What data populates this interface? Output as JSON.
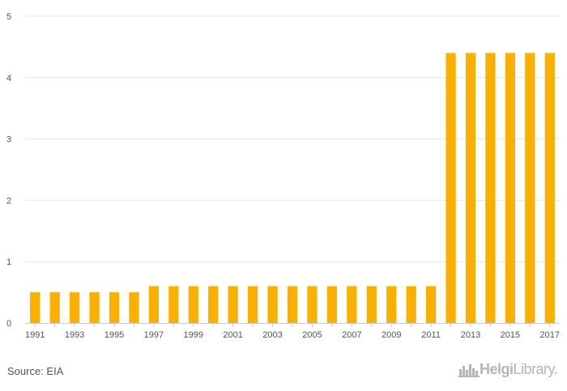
{
  "chart_data": {
    "type": "bar",
    "categories": [
      "1991",
      "1992",
      "1993",
      "1994",
      "1995",
      "1996",
      "1997",
      "1998",
      "1999",
      "2000",
      "2001",
      "2002",
      "2003",
      "2004",
      "2005",
      "2006",
      "2007",
      "2008",
      "2009",
      "2010",
      "2011",
      "2012",
      "2013",
      "2014",
      "2015",
      "2016",
      "2017"
    ],
    "tick_labels_x": [
      "1991",
      "1993",
      "1995",
      "1997",
      "1999",
      "2001",
      "2003",
      "2005",
      "2007",
      "2009",
      "2011",
      "2013",
      "2015",
      "2017"
    ],
    "series": [
      {
        "values": [
          0.5,
          0.5,
          0.5,
          0.5,
          0.5,
          0.5,
          0.6,
          0.6,
          0.6,
          0.6,
          0.6,
          0.6,
          0.6,
          0.6,
          0.6,
          0.6,
          0.6,
          0.6,
          0.6,
          0.6,
          0.6,
          4.4,
          4.4,
          4.4,
          4.4,
          4.4,
          4.4
        ]
      }
    ],
    "ylim": [
      0,
      5
    ],
    "yticks": [
      0,
      1,
      2,
      3,
      4,
      5
    ],
    "grid": true,
    "bar_color": "#f9b000",
    "title": "",
    "xlabel": "",
    "ylabel": ""
  },
  "footer": {
    "source": "Source: EIA",
    "logo_brand": "Helgi",
    "logo_suffix": "Library."
  },
  "colors": {
    "grid": "#e6e6e6",
    "axis": "#cccccc",
    "logo": "#b5b5b5"
  }
}
